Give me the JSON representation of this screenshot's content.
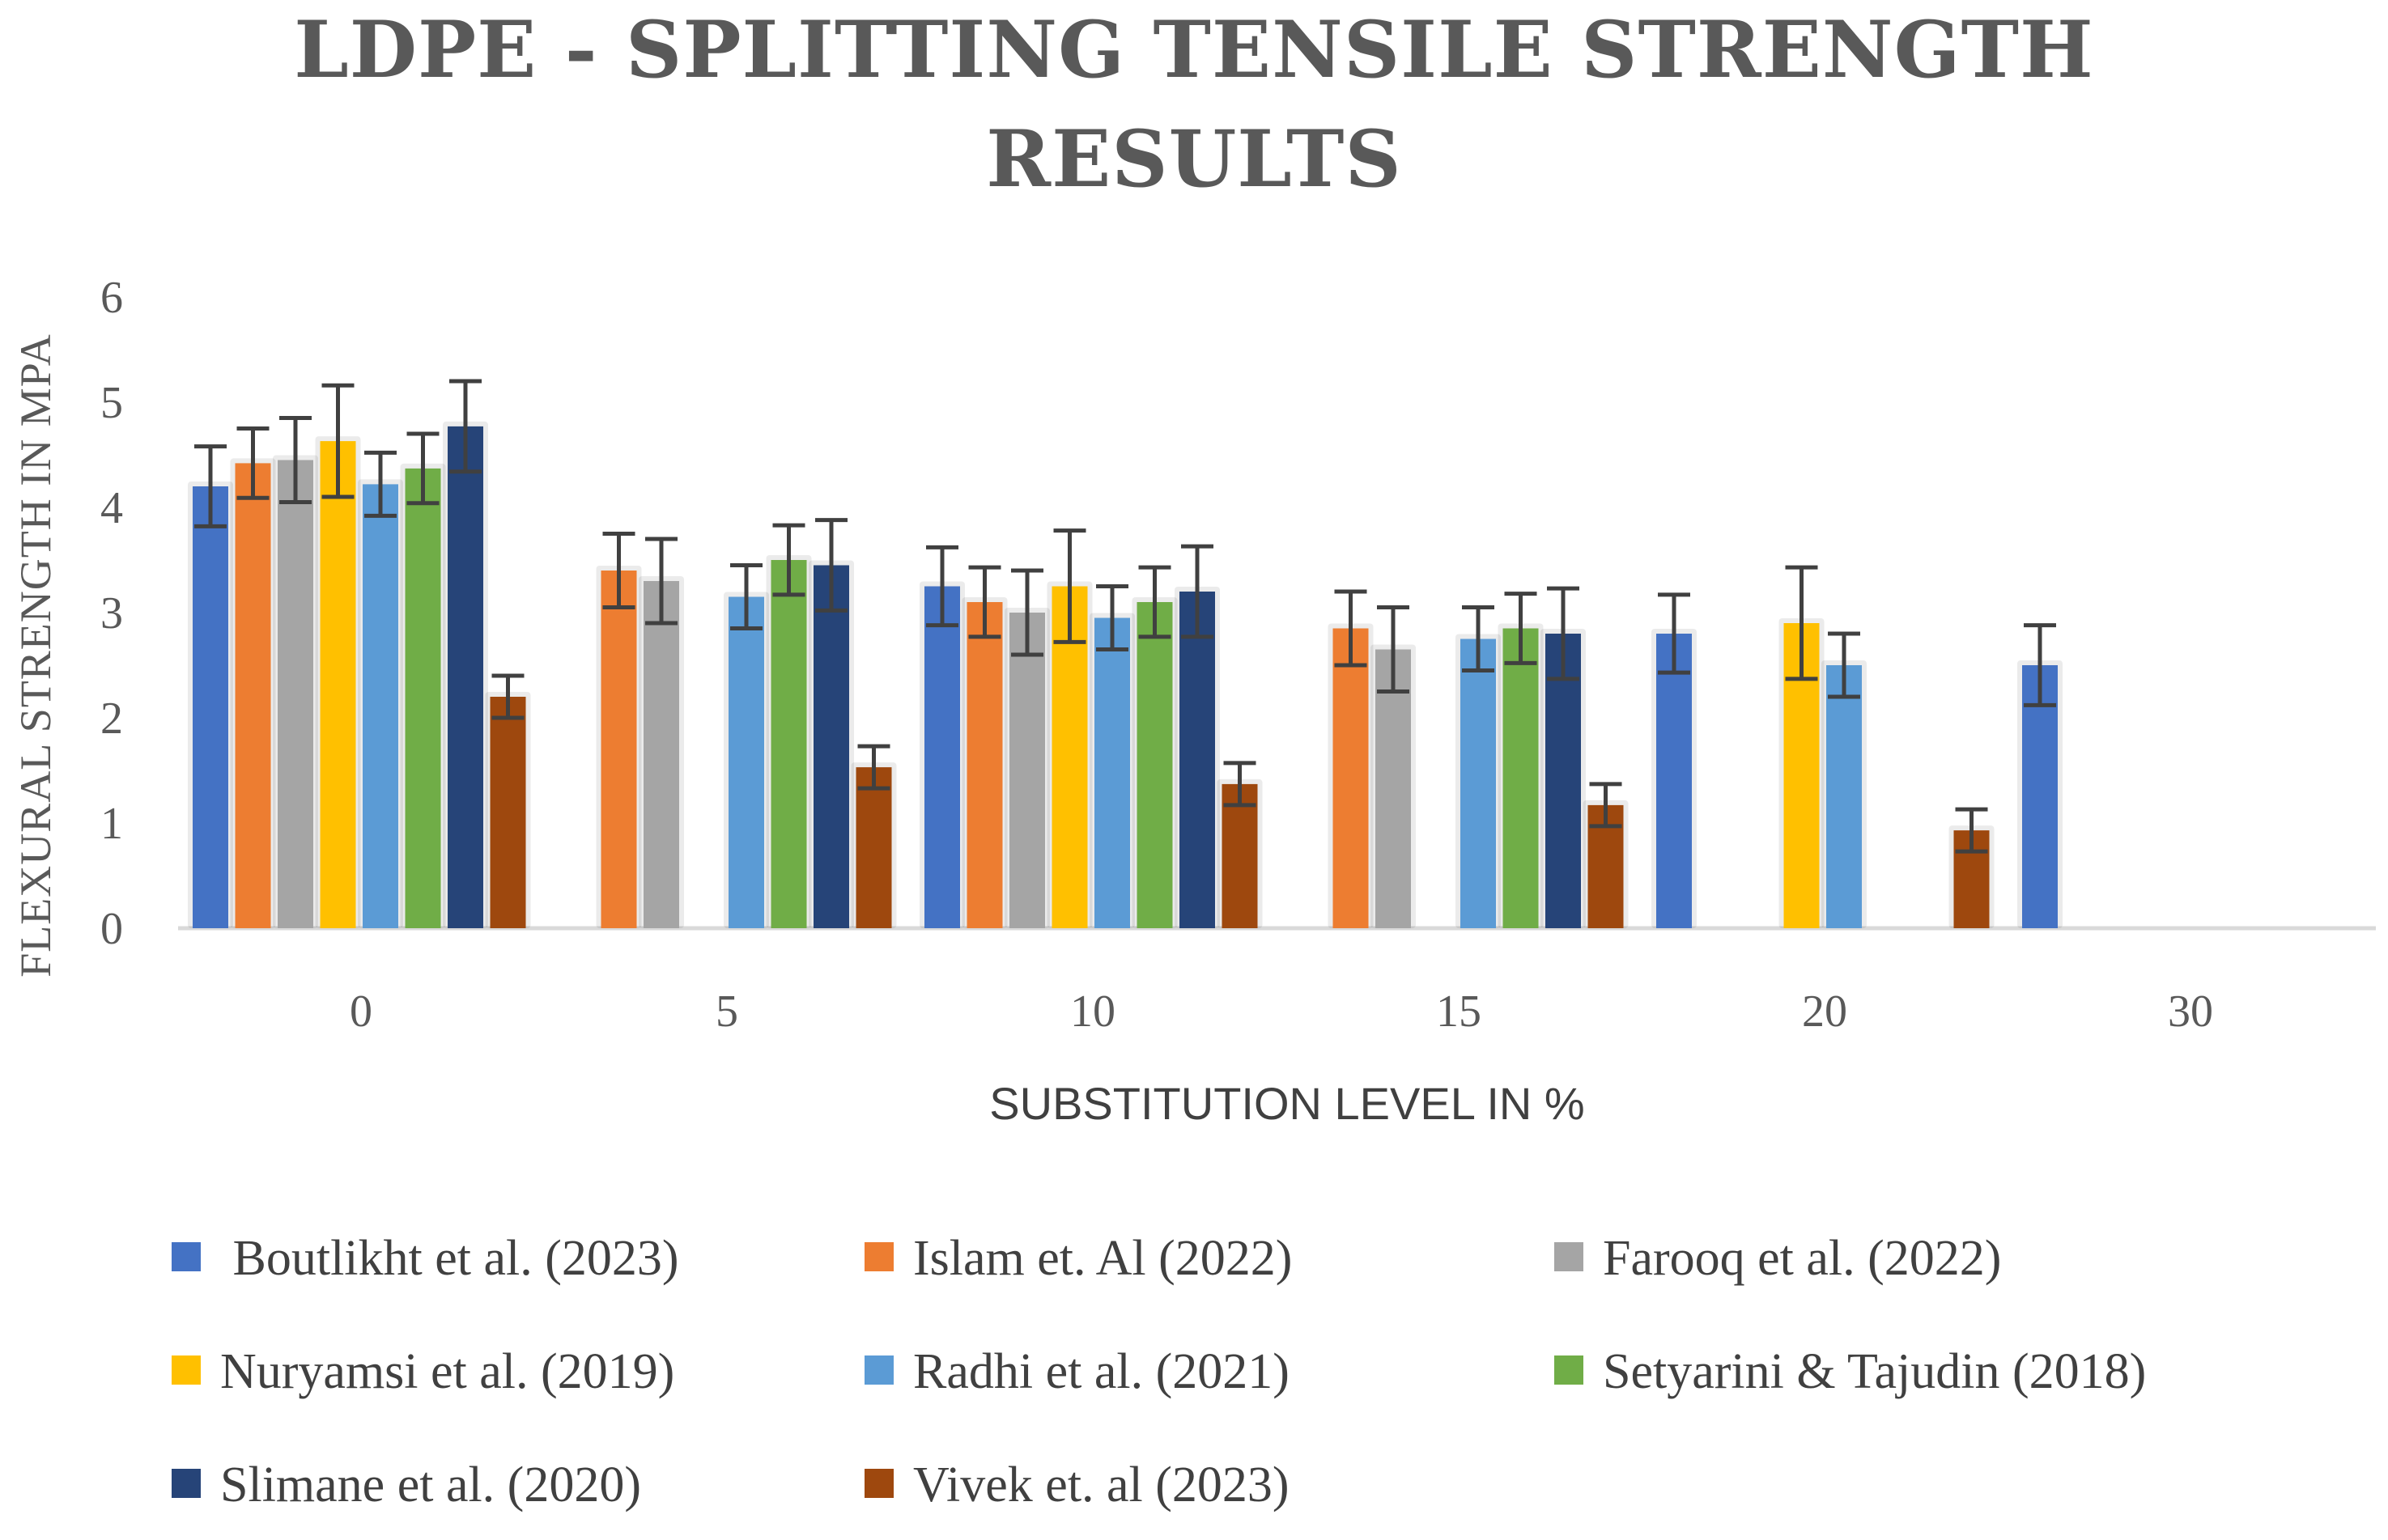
{
  "chart_data": {
    "type": "bar",
    "title_lines": [
      "LDPE - SPLITTING TENSILE STRENGTH",
      "RESULTS"
    ],
    "xlabel": "SUBSTITUTION LEVEL IN %",
    "ylabel": "FLEXURAL STRENGTH IN MPA",
    "ylim": [
      0,
      6
    ],
    "yticks": [
      "0",
      "1",
      "2",
      "3",
      "4",
      "5",
      "6"
    ],
    "categories": [
      "0",
      "5",
      "10",
      "15",
      "20",
      "30"
    ],
    "legend_position": "bottom",
    "series": [
      {
        "name": " Boutlikht et al. (2023)",
        "color": "#4472C4",
        "values": [
          4.2,
          null,
          3.25,
          null,
          2.8,
          2.5
        ],
        "errors": [
          0.38,
          null,
          0.37,
          null,
          0.37,
          0.38
        ]
      },
      {
        "name": "Islam et. Al (2022)",
        "color": "#ED7D31",
        "values": [
          4.42,
          3.4,
          3.1,
          2.85,
          null,
          null
        ],
        "errors": [
          0.33,
          0.35,
          0.33,
          0.35,
          null,
          null
        ]
      },
      {
        "name": "Farooq et al. (2022)",
        "color": "#A5A5A5",
        "values": [
          4.45,
          3.3,
          3.0,
          2.65,
          null,
          null
        ],
        "errors": [
          0.4,
          0.4,
          0.4,
          0.4,
          null,
          null
        ]
      },
      {
        "name": "Nuryamsi et al. (2019)",
        "color": "#FFC000",
        "values": [
          4.63,
          null,
          3.25,
          null,
          2.9,
          null
        ],
        "errors": [
          0.53,
          null,
          0.53,
          null,
          0.53,
          null
        ]
      },
      {
        "name": "Radhi et al. (2021)",
        "color": "#5B9BD5",
        "values": [
          4.22,
          3.15,
          2.95,
          2.75,
          2.5,
          null
        ],
        "errors": [
          0.3,
          0.3,
          0.3,
          0.3,
          0.3,
          null
        ]
      },
      {
        "name": "Setyarini & Tajudin (2018)",
        "color": "#70AD47",
        "values": [
          4.37,
          3.5,
          3.1,
          2.85,
          null,
          null
        ],
        "errors": [
          0.33,
          0.33,
          0.33,
          0.33,
          null,
          null
        ]
      },
      {
        "name": "Slimane et al. (2020)",
        "color": "#264478",
        "values": [
          4.77,
          3.45,
          3.2,
          2.8,
          null,
          null
        ],
        "errors": [
          0.43,
          0.43,
          0.43,
          0.43,
          null,
          null
        ]
      },
      {
        "name": "Vivek et. al (2023)",
        "color": "#9E480E",
        "values": [
          2.2,
          1.53,
          1.37,
          1.17,
          0.93,
          null
        ],
        "errors": [
          0.2,
          0.2,
          0.2,
          0.2,
          0.2,
          null
        ]
      }
    ]
  }
}
